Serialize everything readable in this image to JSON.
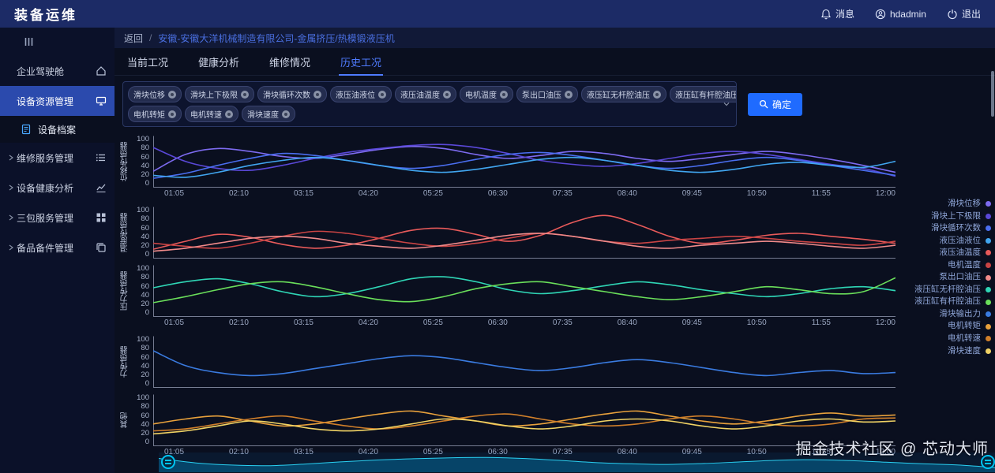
{
  "header": {
    "logo": "装备运维",
    "messages": "消息",
    "username": "hdadmin",
    "logout": "退出"
  },
  "sidebar": {
    "items": [
      {
        "id": "cockpit",
        "label": "企业驾驶舱",
        "icon": "home-icon"
      },
      {
        "id": "device-resource",
        "label": "设备资源管理",
        "icon": "monitor-icon",
        "active": true
      },
      {
        "id": "device-archive",
        "label": "设备档案",
        "icon": "file-icon",
        "sub": true
      },
      {
        "id": "maintenance-service",
        "label": "维修服务管理",
        "icon": "list-icon",
        "chevron": true
      },
      {
        "id": "health-analysis",
        "label": "设备健康分析",
        "icon": "trend-icon",
        "chevron": true
      },
      {
        "id": "warranty-service",
        "label": "三包服务管理",
        "icon": "grid-icon",
        "chevron": true
      },
      {
        "id": "spare-parts",
        "label": "备品备件管理",
        "icon": "copy-icon",
        "chevron": true
      }
    ]
  },
  "breadcrumb": {
    "back": "返回",
    "separator": "/",
    "title": "安徽-安徽大洋机械制造有限公司-金属挤压/热模锻液压机"
  },
  "tabs": [
    {
      "id": "current",
      "label": "当前工况"
    },
    {
      "id": "health",
      "label": "健康分析"
    },
    {
      "id": "repair",
      "label": "维修情况"
    },
    {
      "id": "history",
      "label": "历史工况",
      "active": true
    }
  ],
  "filters": {
    "tags_row1": [
      "滑块位移",
      "滑块上下极限",
      "滑块循环次数",
      "液压油液位",
      "液压油温度",
      "电机温度",
      "泵出口油压",
      "液压缸无杆腔油压",
      "液压缸有杆腔油压",
      "滑块输出力"
    ],
    "tags_row2": [
      "电机转矩",
      "电机转速",
      "滑块速度"
    ],
    "confirm": "确定"
  },
  "legend": [
    {
      "label": "滑块位移",
      "color": "#7d6bf0"
    },
    {
      "label": "滑块上下极限",
      "color": "#5a48d8"
    },
    {
      "label": "滑块循环次数",
      "color": "#4a6ef0"
    },
    {
      "label": "液压油液位",
      "color": "#41a6f0"
    },
    {
      "label": "液压油温度",
      "color": "#e85a5a"
    },
    {
      "label": "电机温度",
      "color": "#c94444"
    },
    {
      "label": "泵出口油压",
      "color": "#f08a8a"
    },
    {
      "label": "液压缸无杆腔油压",
      "color": "#2fd5b5"
    },
    {
      "label": "液压缸有杆腔油压",
      "color": "#6ade5a"
    },
    {
      "label": "滑块输出力",
      "color": "#3a7be0"
    },
    {
      "label": "电机转矩",
      "color": "#e8a13c"
    },
    {
      "label": "电机转速",
      "color": "#d07f2a"
    },
    {
      "label": "滑块速度",
      "color": "#f0d264"
    }
  ],
  "chart_data": {
    "type": "line",
    "categories": [
      "01:05",
      "02:10",
      "03:15",
      "04:20",
      "05:25",
      "06:30",
      "07:35",
      "08:40",
      "09:45",
      "10:50",
      "11:55",
      "12:00"
    ],
    "charts": [
      {
        "ylabel": "位移传感器",
        "ylim": [
          0,
          100
        ],
        "yticks": [
          0,
          20,
          40,
          60,
          80,
          100
        ],
        "show_x_labels": true,
        "series": [
          {
            "name": "滑块位移",
            "color": "#7d6bf0",
            "values": [
              32,
              66,
              78,
              72,
              62,
              58,
              66,
              76,
              82,
              78,
              66,
              58,
              64,
              72,
              68,
              58,
              52,
              58,
              66,
              72,
              66,
              56,
              44,
              30
            ]
          },
          {
            "name": "滑块上下极限",
            "color": "#5a48d8",
            "values": [
              80,
              52,
              38,
              34,
              44,
              58,
              70,
              78,
              84,
              86,
              80,
              68,
              54,
              46,
              42,
              48,
              58,
              68,
              72,
              66,
              56,
              46,
              38,
              22
            ]
          },
          {
            "name": "滑块循环次数",
            "color": "#4a6ef0",
            "values": [
              18,
              28,
              44,
              58,
              68,
              64,
              54,
              44,
              38,
              44,
              56,
              66,
              70,
              64,
              54,
              44,
              38,
              44,
              54,
              60,
              54,
              44,
              34,
              24
            ]
          },
          {
            "name": "液压油液位",
            "color": "#41a6f0",
            "values": [
              24,
              20,
              30,
              44,
              54,
              60,
              54,
              44,
              34,
              30,
              36,
              46,
              56,
              60,
              54,
              44,
              34,
              30,
              36,
              46,
              50,
              44,
              40,
              52
            ]
          }
        ]
      },
      {
        "ylabel": "温度传感器",
        "ylim": [
          0,
          100
        ],
        "yticks": [
          0,
          20,
          40,
          60,
          80,
          100
        ],
        "show_x_labels": false,
        "series": [
          {
            "name": "液压油温度",
            "color": "#e85a5a",
            "values": [
              18,
              34,
              48,
              42,
              28,
              20,
              26,
              40,
              56,
              60,
              48,
              34,
              46,
              72,
              86,
              68,
              44,
              30,
              36,
              46,
              50,
              44,
              38,
              30
            ]
          },
          {
            "name": "电机温度",
            "color": "#c94444",
            "values": [
              30,
              24,
              20,
              30,
              44,
              54,
              50,
              40,
              30,
              24,
              30,
              40,
              50,
              44,
              34,
              30,
              36,
              40,
              44,
              40,
              34,
              30,
              26,
              34
            ]
          },
          {
            "name": "泵出口油压",
            "color": "#f08a8a",
            "values": [
              14,
              20,
              30,
              40,
              44,
              40,
              30,
              24,
              20,
              26,
              36,
              46,
              50,
              44,
              34,
              24,
              20,
              26,
              30,
              34,
              30,
              24,
              20,
              26
            ]
          }
        ]
      },
      {
        "ylabel": "压力传感器",
        "ylim": [
          0,
          100
        ],
        "yticks": [
          0,
          20,
          40,
          60,
          80,
          100
        ],
        "show_x_labels": true,
        "series": [
          {
            "name": "液压缸无杆腔油压",
            "color": "#2fd5b5",
            "values": [
              58,
              70,
              76,
              66,
              50,
              40,
              46,
              60,
              76,
              80,
              70,
              54,
              46,
              52,
              62,
              70,
              64,
              54,
              46,
              40,
              46,
              56,
              60,
              52
            ]
          },
          {
            "name": "液压缸有杆腔油压",
            "color": "#6ade5a",
            "values": [
              28,
              40,
              54,
              66,
              70,
              60,
              46,
              34,
              30,
              40,
              56,
              66,
              70,
              60,
              50,
              40,
              34,
              40,
              50,
              60,
              54,
              46,
              50,
              78
            ]
          }
        ]
      },
      {
        "ylabel": "力传感器",
        "ylim": [
          0,
          100
        ],
        "yticks": [
          0,
          20,
          40,
          60,
          80,
          100
        ],
        "show_x_labels": false,
        "series": [
          {
            "name": "滑块输出力",
            "color": "#3a7be0",
            "values": [
              74,
              44,
              30,
              24,
              28,
              38,
              48,
              58,
              64,
              60,
              50,
              40,
              34,
              40,
              50,
              56,
              50,
              40,
              30,
              24,
              30,
              34,
              28,
              30
            ]
          }
        ]
      },
      {
        "ylabel": "其他",
        "ylim": [
          0,
          100
        ],
        "yticks": [
          0,
          20,
          40,
          60,
          80,
          100
        ],
        "show_x_labels": true,
        "series": [
          {
            "name": "电机转矩",
            "color": "#e8a13c",
            "values": [
              44,
              54,
              60,
              50,
              40,
              44,
              54,
              64,
              70,
              60,
              50,
              40,
              44,
              54,
              64,
              70,
              60,
              50,
              44,
              50,
              60,
              66,
              60,
              62
            ]
          },
          {
            "name": "电机转速",
            "color": "#d07f2a",
            "values": [
              30,
              34,
              44,
              54,
              60,
              50,
              40,
              34,
              40,
              50,
              60,
              64,
              54,
              44,
              40,
              44,
              54,
              60,
              54,
              44,
              40,
              44,
              54,
              56
            ]
          },
          {
            "name": "滑块速度",
            "color": "#f0d264",
            "values": [
              24,
              30,
              40,
              50,
              44,
              34,
              30,
              34,
              44,
              54,
              50,
              40,
              34,
              40,
              50,
              54,
              50,
              40,
              34,
              40,
              50,
              54,
              48,
              50
            ]
          }
        ]
      }
    ]
  },
  "colors": {
    "accent": "#1f6bff",
    "header_bg": "#1c2b66",
    "sidebar_active": "#2b4aad",
    "tab_active": "#4f7bff",
    "zoom_handle": "#00c4f2"
  },
  "watermark": "掘金技术社区 @ 芯动大师"
}
